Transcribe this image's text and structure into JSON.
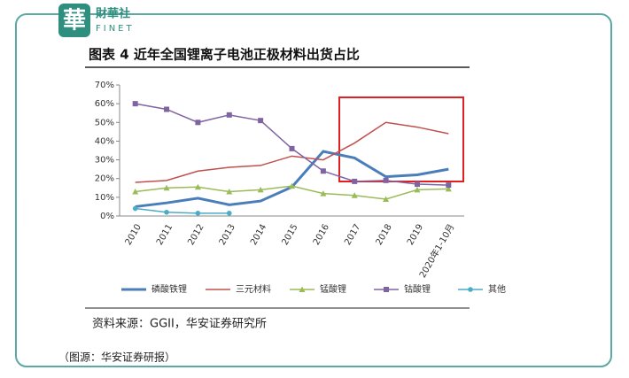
{
  "header": {
    "logo_char": "華",
    "brand": "財華社",
    "brand_en": "FINET"
  },
  "chart_data": {
    "type": "line",
    "title": "图表 4 近年全国锂离子电池正极材料出货占比",
    "categories": [
      "2010",
      "2011",
      "2012",
      "2013",
      "2014",
      "2015",
      "2016",
      "2017",
      "2018",
      "2019",
      "2020年1-10月"
    ],
    "series": [
      {
        "name": "磷酸铁锂",
        "color": "#4a7ebb",
        "values": [
          5,
          7,
          9.5,
          6,
          8,
          15.5,
          34.5,
          31,
          21,
          22,
          25
        ]
      },
      {
        "name": "三元材料",
        "color": "#c0504d",
        "values": [
          18,
          19,
          24,
          26,
          27,
          32,
          30,
          39,
          50,
          47.5,
          44
        ]
      },
      {
        "name": "锰酸锂",
        "color": "#9bbb59",
        "marker": "triangle",
        "values": [
          13,
          15,
          15.5,
          13,
          14,
          16,
          12,
          11,
          9,
          14,
          14.5
        ]
      },
      {
        "name": "钴酸锂",
        "color": "#8064a2",
        "marker": "square",
        "values": [
          60,
          57,
          50,
          54,
          51,
          36,
          24,
          18.5,
          19,
          17,
          16.5
        ]
      },
      {
        "name": "其他",
        "color": "#4bacc6",
        "marker": "circle",
        "values": [
          4,
          2,
          1.5,
          1.5,
          null,
          null,
          null,
          null,
          null,
          null,
          null
        ]
      }
    ],
    "ylim": [
      0,
      70
    ],
    "yticks": [
      {
        "value": 0,
        "label": "0%"
      },
      {
        "value": 10,
        "label": "10%"
      },
      {
        "value": 20,
        "label": "20%"
      },
      {
        "value": 30,
        "label": "30%"
      },
      {
        "value": 40,
        "label": "40%"
      },
      {
        "value": 50,
        "label": "50%"
      },
      {
        "value": 60,
        "label": "60%"
      },
      {
        "value": 70,
        "label": "70%"
      }
    ],
    "source": "资料来源：GGII，华安证券研究所"
  },
  "caption": "（图源：华安证券研报）"
}
